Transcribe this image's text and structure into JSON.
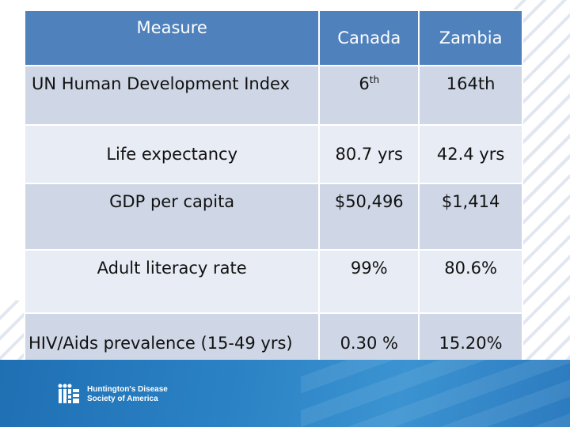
{
  "table": {
    "headers": [
      "Measure",
      "Canada",
      "Zambia"
    ],
    "rows": [
      {
        "measure": "UN Human Development Index",
        "canada": "6",
        "canada_sup": "th",
        "zambia": "164th"
      },
      {
        "measure": "Life expectancy",
        "canada": "80.7 yrs",
        "zambia": "42.4 yrs"
      },
      {
        "measure": "GDP per capita",
        "canada": "$50,496",
        "zambia": "$1,414"
      },
      {
        "measure": "Adult literacy rate",
        "canada": "99%",
        "zambia": "80.6%"
      },
      {
        "measure": "HIV/Aids prevalence (15-49 yrs)",
        "canada": "0.30 %",
        "zambia": "15.20%"
      }
    ]
  },
  "footer": {
    "logo_line1": "Huntington's Disease",
    "logo_line2": "Society of America"
  },
  "colors": {
    "header_bg": "#4f81bd",
    "row_dark": "#cfd7e6",
    "row_light": "#e8ecf4",
    "footer_blue": "#2a82c4"
  }
}
